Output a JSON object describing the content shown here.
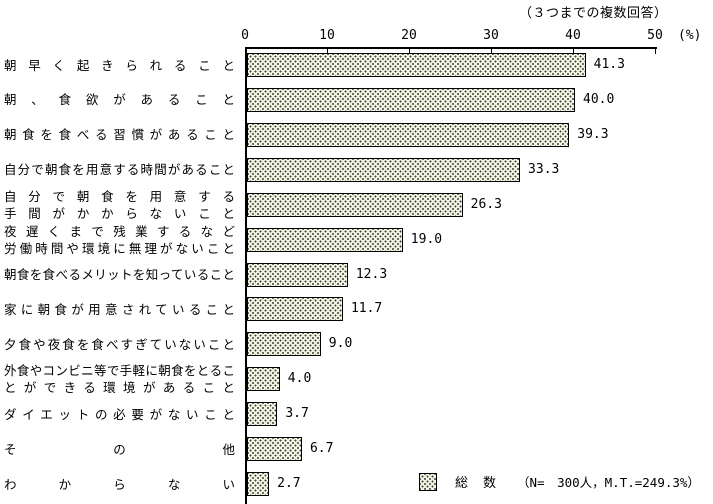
{
  "note": "（３つまでの複数回答）",
  "axis": {
    "unit": "(%)",
    "ticks": [
      0,
      10,
      20,
      30,
      40,
      50
    ]
  },
  "legend": {
    "label": "総　数",
    "detail": "（N=　300人，M.T.=249.3%）"
  },
  "colors": {
    "background": "#ffffff",
    "text": "#000000",
    "bar_fill": "#f4f3e3",
    "bar_dot": "#3a453a",
    "bar_border": "#000000"
  },
  "chart_data": {
    "type": "bar",
    "orientation": "horizontal",
    "title": "（３つまでの複数回答）",
    "xlabel": "(%)",
    "xlim": [
      0,
      50
    ],
    "x_ticks": [
      0,
      10,
      20,
      30,
      40,
      50
    ],
    "grid": false,
    "legend": {
      "label": "総　数",
      "detail": "（N=　300人，M.T.=249.3%）",
      "position": "bottom-right",
      "swatch": "dotted-pattern"
    },
    "categories": [
      "朝早く起きられること",
      "朝、食欲があること",
      "朝食を食べる習慣があること",
      "自分で朝食を用意する時間があること",
      "自分で朝食を用意する手間がかからないこと",
      "夜遅くまで残業するなど労働時間や環境に無理がないこと",
      "朝食を食べるメリットを知っていること",
      "家に朝食が用意されていること",
      "夕食や夜食を食べすぎていないこと",
      "外食やコンビニ等で手軽に朝食をとることができる環境があること",
      "ダイエットの必要がないこと",
      "その他",
      "わからない"
    ],
    "categories_display": [
      [
        "朝早く起きられること"
      ],
      [
        "朝、食欲があること"
      ],
      [
        "朝食を食べる習慣があること"
      ],
      [
        "自分で朝食を用意する時間があること"
      ],
      [
        "自分で朝食を用意する",
        "手間がかからないこと"
      ],
      [
        "夜遅くまで残業するなど",
        "労働時間や環境に無理がないこと"
      ],
      [
        "朝食を食べるメリットを知っていること"
      ],
      [
        "家に朝食が用意されていること"
      ],
      [
        "夕食や夜食を食べすぎていないこと"
      ],
      [
        "外食やコンビニ等で手軽に朝食をとるこ",
        "とができる環境があること"
      ],
      [
        "ダイエットの必要がないこと"
      ],
      [
        "その他"
      ],
      [
        "わからない"
      ]
    ],
    "values": [
      41.3,
      40.0,
      39.3,
      33.3,
      26.3,
      19.0,
      12.3,
      11.7,
      9.0,
      4.0,
      3.7,
      6.7,
      2.7
    ],
    "value_labels": [
      "41.3",
      "40.0",
      "39.3",
      "33.3",
      "26.3",
      "19.0",
      "12.3",
      "11.7",
      "9.0",
      "4.0",
      "3.7",
      "6.7",
      "2.7"
    ]
  }
}
